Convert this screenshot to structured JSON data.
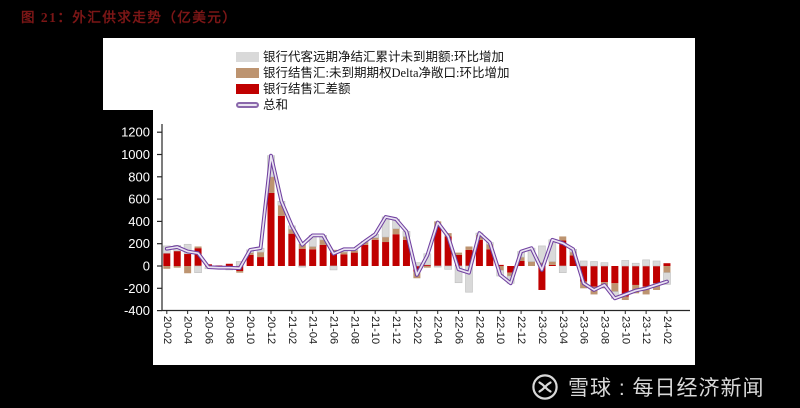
{
  "page": {
    "background": "#000000"
  },
  "title": {
    "text": "图 21：外汇供求走势（亿美元）",
    "color": "#7b1616"
  },
  "watermark": {
    "logo_icon": "snowball-circle-ribbon-icon",
    "text": "雪球 : 每日经济新闻",
    "color": "#d9d9d9"
  },
  "axes": {
    "y_label_color": "#ffffff",
    "x_label_color": "#1a1a1a",
    "spine_color": "#262626"
  },
  "chart_data": {
    "type": "bar",
    "subtype": "stacked-bars-with-sum-line",
    "title": "",
    "xlabel": "",
    "ylabel": "",
    "ylim": [
      -400,
      1200
    ],
    "ytick_step": 200,
    "y_ticks": [
      1200,
      1000,
      800,
      600,
      400,
      200,
      0,
      -200,
      -400
    ],
    "grid": false,
    "legend_position": "top-left-inside",
    "x_label_every": 2,
    "x": [
      "20-02",
      "20-03",
      "20-04",
      "20-05",
      "20-06",
      "20-07",
      "20-08",
      "20-09",
      "20-10",
      "20-11",
      "20-12",
      "21-01",
      "21-02",
      "21-03",
      "21-04",
      "21-05",
      "21-06",
      "21-07",
      "21-08",
      "21-09",
      "21-10",
      "21-11",
      "21-12",
      "22-01",
      "22-02",
      "22-03",
      "22-04",
      "22-05",
      "22-06",
      "22-07",
      "22-08",
      "22-09",
      "22-10",
      "22-11",
      "22-12",
      "23-01",
      "23-02",
      "23-03",
      "23-04",
      "23-05",
      "23-06",
      "23-07",
      "23-08",
      "23-09",
      "23-10",
      "23-11",
      "23-12",
      "24-01",
      "24-02"
    ],
    "series": [
      {
        "name": "银行代客远期净结汇累计未到期额:环比增加",
        "role": "bar-gray",
        "color": "#d9d9d9",
        "stroke": "#bfbfbf",
        "values": [
          65,
          50,
          85,
          -60,
          -15,
          0,
          -20,
          40,
          25,
          35,
          190,
          35,
          30,
          -10,
          100,
          40,
          -35,
          25,
          10,
          5,
          30,
          180,
          85,
          45,
          30,
          100,
          -10,
          -30,
          -150,
          -235,
          15,
          15,
          -50,
          -65,
          50,
          120,
          150,
          195,
          -60,
          25,
          45,
          40,
          30,
          -60,
          50,
          25,
          55,
          45,
          -105
        ]
      },
      {
        "name": "银行结售汇:未到期期权Delta净敞口:环比增加",
        "role": "bar-tan",
        "color": "#bd9470",
        "stroke": "none",
        "values": [
          -25,
          -15,
          -65,
          15,
          -10,
          -20,
          -15,
          -15,
          20,
          45,
          145,
          95,
          40,
          45,
          25,
          45,
          25,
          20,
          20,
          25,
          20,
          45,
          50,
          30,
          -60,
          -15,
          45,
          30,
          20,
          30,
          45,
          45,
          -40,
          -30,
          35,
          40,
          30,
          30,
          35,
          30,
          -60,
          -70,
          -55,
          -75,
          -30,
          -75,
          -70,
          -60,
          -60
        ]
      },
      {
        "name": "银行结售汇差额",
        "role": "bar-red",
        "color": "#c00000",
        "stroke": "none",
        "values": [
          115,
          135,
          110,
          160,
          15,
          5,
          20,
          -45,
          100,
          80,
          655,
          450,
          290,
          155,
          150,
          190,
          120,
          105,
          120,
          190,
          235,
          215,
          285,
          235,
          -50,
          10,
          355,
          265,
          100,
          145,
          235,
          150,
          10,
          -60,
          45,
          0,
          -215,
          10,
          230,
          95,
          -140,
          -185,
          -145,
          -155,
          -275,
          -170,
          -185,
          -155,
          25
        ]
      },
      {
        "name": "总和",
        "role": "sum-line",
        "color": "#7040a0",
        "inner_color": "#eae4f2",
        "values": [
          155,
          170,
          130,
          115,
          -10,
          -15,
          -15,
          -20,
          145,
          160,
          990,
          580,
          360,
          190,
          275,
          275,
          110,
          150,
          150,
          220,
          285,
          440,
          420,
          310,
          -80,
          95,
          390,
          265,
          -30,
          -60,
          295,
          210,
          -80,
          -155,
          130,
          160,
          -35,
          235,
          205,
          150,
          -155,
          -215,
          -170,
          -290,
          -255,
          -220,
          -200,
          -170,
          -140
        ]
      }
    ]
  }
}
